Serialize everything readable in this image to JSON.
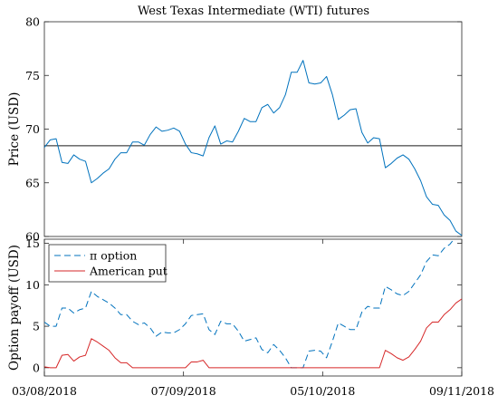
{
  "figure": {
    "title": "West Texas Intermediate (WTI) futures"
  },
  "chart_data": [
    {
      "type": "line",
      "title": "West Texas Intermediate (WTI) futures",
      "xlabel": "",
      "ylabel": "Price (USD)",
      "ylim": [
        60,
        80
      ],
      "yticks": [
        60,
        65,
        70,
        75,
        80
      ],
      "grid": false,
      "reference_line": {
        "y": 68.45
      },
      "series": [
        {
          "color": "#0072bd",
          "values": [
            68.3,
            69.0,
            69.1,
            66.9,
            66.8,
            67.6,
            67.2,
            67.0,
            65.0,
            65.4,
            65.9,
            66.3,
            67.2,
            67.8,
            67.8,
            68.8,
            68.8,
            68.5,
            69.5,
            70.2,
            69.8,
            69.9,
            70.1,
            69.8,
            68.6,
            67.8,
            67.7,
            67.5,
            69.2,
            70.3,
            68.6,
            68.9,
            68.8,
            69.8,
            71.0,
            70.7,
            70.7,
            72.0,
            72.3,
            71.5,
            72.0,
            73.2,
            75.3,
            75.3,
            76.4,
            74.3,
            74.2,
            74.3,
            74.9,
            73.2,
            70.9,
            71.3,
            71.8,
            71.9,
            69.7,
            68.7,
            69.2,
            69.1,
            66.4,
            66.8,
            67.3,
            67.6,
            67.2,
            66.3,
            65.2,
            63.7,
            63.0,
            62.9,
            62.0,
            61.5,
            60.5,
            60.1
          ]
        }
      ]
    },
    {
      "type": "line",
      "xlabel": "",
      "ylabel": "Option payoff (USD)",
      "ylim": [
        -1,
        15.5
      ],
      "yticks": [
        0,
        5,
        10,
        15
      ],
      "grid": false,
      "legend_position": "top-left",
      "x_tick_labels": [
        "03/08/2018",
        "07/09/2018",
        "05/10/2018",
        "09/11/2018"
      ],
      "series": [
        {
          "name": "π option",
          "color": "#0072bd",
          "dash": "dashed",
          "values": [
            5.5,
            5.0,
            5.0,
            7.2,
            7.2,
            6.6,
            7.0,
            7.2,
            9.2,
            8.6,
            8.2,
            7.8,
            7.2,
            6.4,
            6.4,
            5.6,
            5.2,
            5.4,
            4.8,
            3.8,
            4.3,
            4.2,
            4.2,
            4.6,
            5.3,
            6.3,
            6.4,
            6.5,
            4.6,
            4.0,
            5.6,
            5.3,
            5.3,
            4.4,
            3.2,
            3.4,
            3.6,
            2.2,
            1.8,
            2.8,
            2.1,
            1.2,
            0.0,
            0.0,
            0.0,
            2.0,
            2.1,
            2.0,
            1.2,
            3.2,
            5.4,
            5.0,
            4.6,
            4.6,
            6.7,
            7.4,
            7.2,
            7.2,
            9.8,
            9.4,
            8.9,
            8.7,
            9.2,
            10.2,
            11.2,
            12.8,
            13.6,
            13.5,
            14.4,
            14.9,
            15.8,
            16.3
          ]
        },
        {
          "name": "American put",
          "color": "#d62728",
          "dash": "solid",
          "values": [
            0.1,
            0.0,
            0.0,
            1.5,
            1.6,
            0.8,
            1.3,
            1.5,
            3.5,
            3.1,
            2.6,
            2.1,
            1.2,
            0.6,
            0.6,
            0.0,
            0.0,
            0.0,
            0.0,
            0.0,
            0.0,
            0.0,
            0.0,
            0.0,
            0.0,
            0.7,
            0.7,
            0.9,
            0.0,
            0.0,
            0.0,
            0.0,
            0.0,
            0.0,
            0.0,
            0.0,
            0.0,
            0.0,
            0.0,
            0.0,
            0.0,
            0.0,
            0.0,
            0.0,
            0.0,
            0.0,
            0.0,
            0.0,
            0.0,
            0.0,
            0.0,
            0.0,
            0.0,
            0.0,
            0.0,
            0.0,
            0.0,
            0.0,
            2.1,
            1.7,
            1.2,
            0.9,
            1.3,
            2.2,
            3.2,
            4.8,
            5.5,
            5.5,
            6.4,
            7.0,
            7.8,
            8.3
          ]
        }
      ]
    }
  ]
}
